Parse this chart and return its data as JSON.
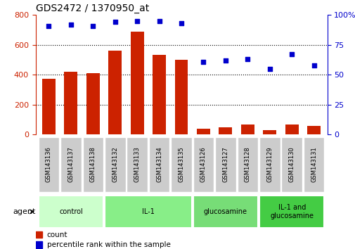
{
  "title": "GDS2472 / 1370950_at",
  "samples": [
    "GSM143136",
    "GSM143137",
    "GSM143138",
    "GSM143132",
    "GSM143133",
    "GSM143134",
    "GSM143135",
    "GSM143126",
    "GSM143127",
    "GSM143128",
    "GSM143129",
    "GSM143130",
    "GSM143131"
  ],
  "counts": [
    375,
    420,
    410,
    560,
    690,
    535,
    500,
    40,
    48,
    65,
    28,
    68,
    58
  ],
  "percentile_ranks": [
    91,
    92,
    91,
    94,
    95,
    95,
    93,
    61,
    62,
    63,
    55,
    67,
    58
  ],
  "groups": [
    {
      "label": "control",
      "start": 0,
      "end": 3,
      "color": "#ccffcc"
    },
    {
      "label": "IL-1",
      "start": 3,
      "end": 7,
      "color": "#88ee88"
    },
    {
      "label": "glucosamine",
      "start": 7,
      "end": 10,
      "color": "#77dd77"
    },
    {
      "label": "IL-1 and\nglucosamine",
      "start": 10,
      "end": 13,
      "color": "#44cc44"
    }
  ],
  "bar_color": "#cc2200",
  "dot_color": "#0000cc",
  "ylim_left": [
    0,
    800
  ],
  "ylim_right": [
    0,
    100
  ],
  "yticks_left": [
    0,
    200,
    400,
    600,
    800
  ],
  "yticks_right": [
    0,
    25,
    50,
    75,
    100
  ],
  "agent_label": "agent",
  "legend_count_label": "count",
  "legend_pct_label": "percentile rank within the sample",
  "bg_color": "#ffffff",
  "tick_label_bg": "#cccccc",
  "tick_label_border": "#888888"
}
